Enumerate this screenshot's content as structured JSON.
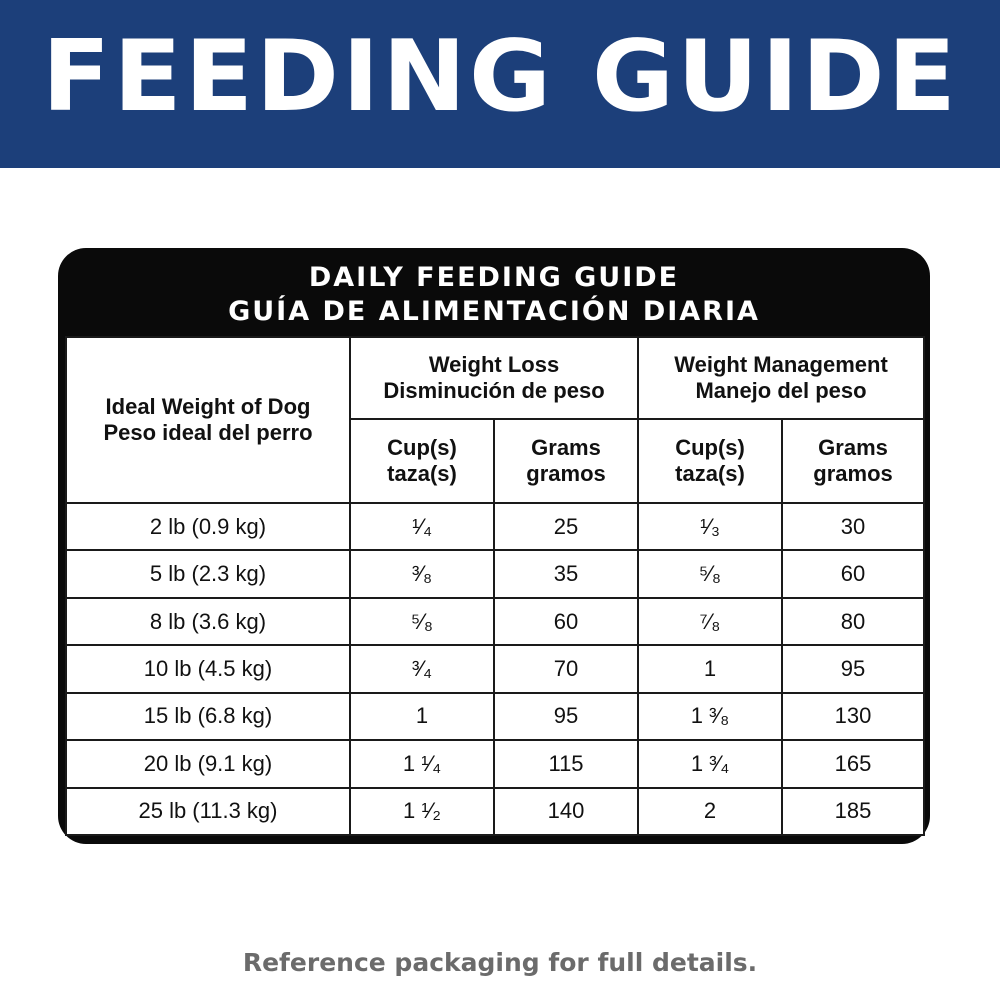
{
  "banner": {
    "title": "FEEDING GUIDE"
  },
  "card": {
    "title_en": "DAILY FEEDING GUIDE",
    "title_es": "GUÍA DE ALIMENTACIÓN DIARIA"
  },
  "table": {
    "col_weight": {
      "en": "Ideal Weight of Dog",
      "es": "Peso ideal del perro"
    },
    "group_loss": {
      "en": "Weight Loss",
      "es": "Disminución de peso"
    },
    "group_mgmt": {
      "en": "Weight Management",
      "es": "Manejo del peso"
    },
    "sub_cups": {
      "en": "Cup(s)",
      "es": "taza(s)"
    },
    "sub_grams": {
      "en": "Grams",
      "es": "gramos"
    },
    "rows": [
      {
        "weight": "2 lb (0.9 kg)",
        "loss_cups": "¹⁄₄",
        "loss_grams": "25",
        "mgmt_cups": "¹⁄₃",
        "mgmt_grams": "30"
      },
      {
        "weight": "5 lb (2.3 kg)",
        "loss_cups": "³⁄₈",
        "loss_grams": "35",
        "mgmt_cups": "⁵⁄₈",
        "mgmt_grams": "60"
      },
      {
        "weight": "8 lb (3.6 kg)",
        "loss_cups": "⁵⁄₈",
        "loss_grams": "60",
        "mgmt_cups": "⁷⁄₈",
        "mgmt_grams": "80"
      },
      {
        "weight": "10 lb (4.5 kg)",
        "loss_cups": "³⁄₄",
        "loss_grams": "70",
        "mgmt_cups": "1",
        "mgmt_grams": "95"
      },
      {
        "weight": "15 lb (6.8 kg)",
        "loss_cups": "1",
        "loss_grams": "95",
        "mgmt_cups": "1 ³⁄₈",
        "mgmt_grams": "130"
      },
      {
        "weight": "20 lb (9.1 kg)",
        "loss_cups": "1 ¹⁄₄",
        "loss_grams": "115",
        "mgmt_cups": "1 ³⁄₄",
        "mgmt_grams": "165"
      },
      {
        "weight": "25 lb (11.3 kg)",
        "loss_cups": "1 ¹⁄₂",
        "loss_grams": "140",
        "mgmt_cups": "2",
        "mgmt_grams": "185"
      }
    ]
  },
  "footnote": "Reference packaging for full details.",
  "colors": {
    "banner": "#1c3f7a",
    "card": "#0a0a0a",
    "footnote": "#6b6b6b"
  }
}
